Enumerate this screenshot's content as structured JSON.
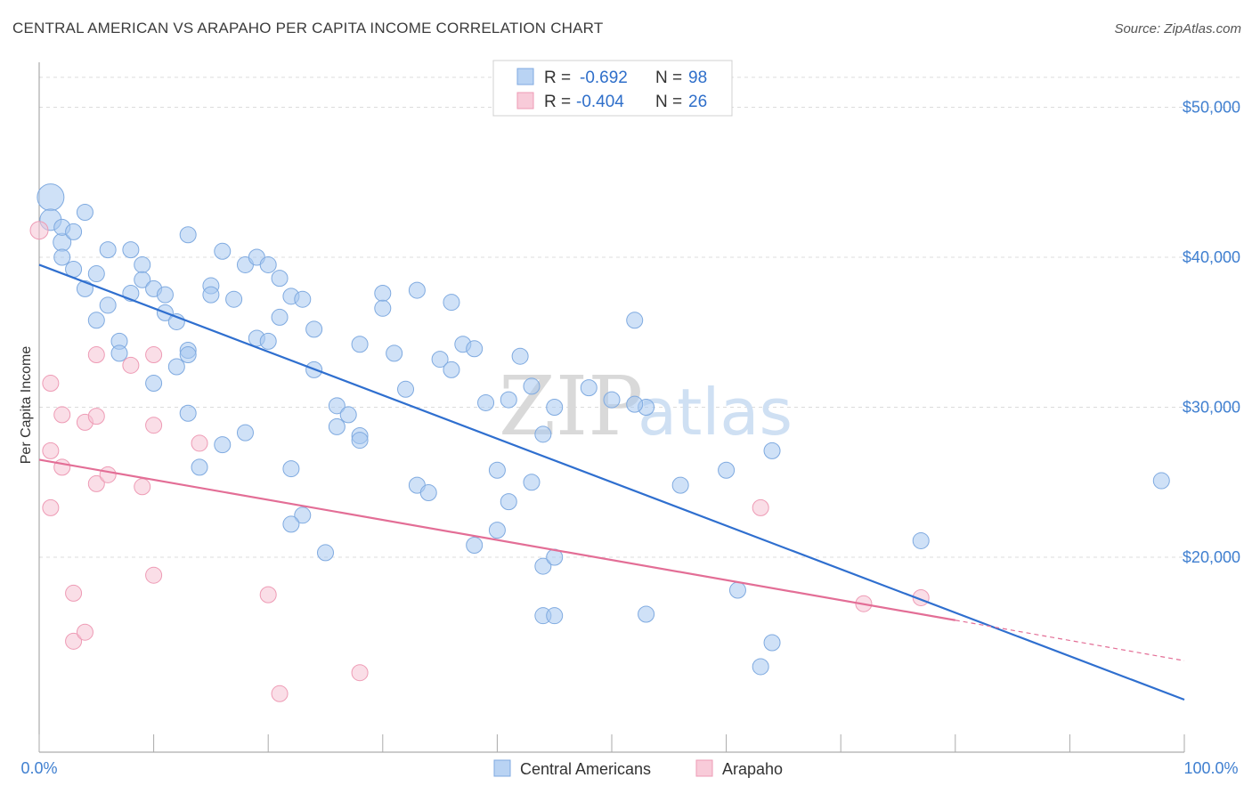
{
  "title": "CENTRAL AMERICAN VS ARAPAHO PER CAPITA INCOME CORRELATION CHART",
  "source": "Source: ZipAtlas.com",
  "chart_data": {
    "type": "scatter",
    "ylabel": "Per Capita Income",
    "xlim": [
      0,
      100
    ],
    "ylim": [
      7000,
      53000
    ],
    "x_tick_labels": [
      "0.0%",
      "100.0%"
    ],
    "y_ticks": [
      {
        "value": 20000,
        "label": "$20,000"
      },
      {
        "value": 30000,
        "label": "$30,000"
      },
      {
        "value": 40000,
        "label": "$40,000"
      },
      {
        "value": 50000,
        "label": "$50,000"
      }
    ],
    "grid": true,
    "watermark": {
      "zip": "ZIP",
      "atlas": "atlas"
    },
    "legend_stats": [
      {
        "r_label": "R =",
        "r_value": "-0.692",
        "n_label": "N =",
        "n_value": "98",
        "color": "#7fb0ea"
      },
      {
        "r_label": "R =",
        "r_value": "-0.404",
        "n_label": "N =",
        "n_value": "26",
        "color": "#f1a3bb"
      }
    ],
    "series": [
      {
        "name": "Central Americans",
        "color": "#a8c8f0",
        "stroke": "#7faae0",
        "trend": {
          "x0": 0,
          "y0": 39500,
          "x1": 100,
          "y1": 10500,
          "color": "#2f6fcf"
        },
        "points": [
          [
            1,
            44000,
            15
          ],
          [
            1,
            42500,
            12
          ],
          [
            2,
            41000,
            10
          ],
          [
            2,
            42000,
            9
          ],
          [
            3,
            41700,
            9
          ],
          [
            4,
            43000,
            9
          ],
          [
            3,
            39200,
            9
          ],
          [
            5,
            38900,
            9
          ],
          [
            4,
            37900,
            9
          ],
          [
            6,
            40500,
            9
          ],
          [
            8,
            40500,
            9
          ],
          [
            9,
            39500,
            9
          ],
          [
            9,
            38500,
            9
          ],
          [
            8,
            37600,
            9
          ],
          [
            6,
            36800,
            9
          ],
          [
            5,
            35800,
            9
          ],
          [
            7,
            34400,
            9
          ],
          [
            7,
            33600,
            9
          ],
          [
            10,
            37900,
            9
          ],
          [
            11,
            37500,
            9
          ],
          [
            11,
            36300,
            9
          ],
          [
            12,
            35700,
            9
          ],
          [
            13,
            33800,
            9
          ],
          [
            13,
            33500,
            9
          ],
          [
            12,
            32700,
            9
          ],
          [
            10,
            31600,
            9
          ],
          [
            13,
            29600,
            9
          ],
          [
            14,
            26000,
            9
          ],
          [
            16,
            27500,
            9
          ],
          [
            18,
            28300,
            9
          ],
          [
            13,
            41500,
            9
          ],
          [
            16,
            40400,
            9
          ],
          [
            18,
            39500,
            9
          ],
          [
            19,
            40000,
            9
          ],
          [
            20,
            39500,
            9
          ],
          [
            21,
            38600,
            9
          ],
          [
            15,
            38100,
            9
          ],
          [
            15,
            37500,
            9
          ],
          [
            17,
            37200,
            9
          ],
          [
            22,
            37400,
            9
          ],
          [
            23,
            37200,
            9
          ],
          [
            21,
            36000,
            9
          ],
          [
            24,
            35200,
            9
          ],
          [
            19,
            34600,
            9
          ],
          [
            20,
            34400,
            9
          ],
          [
            24,
            32500,
            9
          ],
          [
            26,
            30100,
            9
          ],
          [
            27,
            29500,
            9
          ],
          [
            26,
            28700,
            9
          ],
          [
            28,
            28100,
            9
          ],
          [
            28,
            27800,
            9
          ],
          [
            22,
            25900,
            9
          ],
          [
            23,
            22800,
            9
          ],
          [
            22,
            22200,
            9
          ],
          [
            25,
            20300,
            9
          ],
          [
            28,
            34200,
            9
          ],
          [
            30,
            37600,
            9
          ],
          [
            30,
            36600,
            9
          ],
          [
            31,
            33600,
            9
          ],
          [
            32,
            31200,
            9
          ],
          [
            33,
            37800,
            9
          ],
          [
            33,
            24800,
            9
          ],
          [
            34,
            24300,
            9
          ],
          [
            35,
            33200,
            9
          ],
          [
            36,
            32500,
            9
          ],
          [
            37,
            34200,
            9
          ],
          [
            36,
            37000,
            9
          ],
          [
            38,
            33900,
            9
          ],
          [
            39,
            30300,
            9
          ],
          [
            42,
            33400,
            9
          ],
          [
            41,
            30500,
            9
          ],
          [
            43,
            31400,
            9
          ],
          [
            44,
            28200,
            9
          ],
          [
            45,
            30000,
            9
          ],
          [
            43,
            25000,
            9
          ],
          [
            40,
            25800,
            9
          ],
          [
            41,
            23700,
            9
          ],
          [
            40,
            21800,
            9
          ],
          [
            38,
            20800,
            9
          ],
          [
            44,
            19400,
            9
          ],
          [
            45,
            20000,
            9
          ],
          [
            44,
            16100,
            9
          ],
          [
            45,
            16100,
            9
          ],
          [
            48,
            31300,
            9
          ],
          [
            50,
            30500,
            9
          ],
          [
            53,
            30000,
            9
          ],
          [
            52,
            30200,
            9
          ],
          [
            52,
            35800,
            9
          ],
          [
            53,
            16200,
            9
          ],
          [
            56,
            24800,
            9
          ],
          [
            60,
            25800,
            9
          ],
          [
            61,
            17800,
            9
          ],
          [
            64,
            27100,
            9
          ],
          [
            63,
            12700,
            9
          ],
          [
            64,
            14300,
            9
          ],
          [
            77,
            21100,
            9
          ],
          [
            98,
            25100,
            9
          ],
          [
            2,
            40000,
            9
          ]
        ]
      },
      {
        "name": "Arapaho",
        "color": "#f6c3d3",
        "stroke": "#ee9bb5",
        "trend": {
          "x0": 0,
          "y0": 26500,
          "x1": 80,
          "y1": 15800,
          "color": "#e36e96"
        },
        "trend_ext": {
          "x0": 80,
          "y0": 15800,
          "x1": 100,
          "y1": 13100
        },
        "points": [
          [
            0,
            41800,
            10
          ],
          [
            1,
            31600,
            9
          ],
          [
            1,
            27100,
            9
          ],
          [
            1,
            23300,
            9
          ],
          [
            2,
            26000,
            9
          ],
          [
            2,
            29500,
            9
          ],
          [
            3,
            17600,
            9
          ],
          [
            3,
            14400,
            9
          ],
          [
            4,
            29000,
            9
          ],
          [
            4,
            15000,
            9
          ],
          [
            5,
            33500,
            9
          ],
          [
            5,
            29400,
            9
          ],
          [
            5,
            24900,
            9
          ],
          [
            6,
            25500,
            9
          ],
          [
            8,
            32800,
            9
          ],
          [
            9,
            24700,
            9
          ],
          [
            10,
            28800,
            9
          ],
          [
            10,
            33500,
            9
          ],
          [
            10,
            18800,
            9
          ],
          [
            14,
            27600,
            9
          ],
          [
            20,
            17500,
            9
          ],
          [
            21,
            10900,
            9
          ],
          [
            28,
            12300,
            9
          ],
          [
            63,
            23300,
            9
          ],
          [
            72,
            16900,
            9
          ],
          [
            77,
            17300,
            9
          ]
        ]
      }
    ]
  }
}
